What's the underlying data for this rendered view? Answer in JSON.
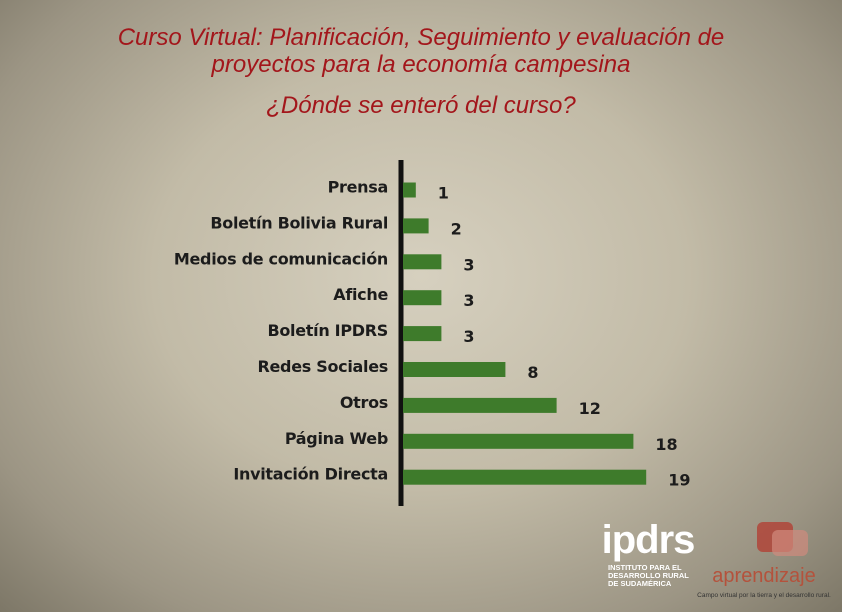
{
  "chart_data": {
    "type": "bar",
    "orientation": "horizontal",
    "title": "Curso Virtual: Planificación, Seguimiento y evaluación de proyectos para la economía campesina",
    "subtitle": "¿Dónde se enteró del curso?",
    "categories": [
      "Prensa",
      "Boletín Bolivia Rural",
      "Medios de comunicación",
      "Afiche",
      "Boletín IPDRS",
      "Redes Sociales",
      "Otros",
      "Página Web",
      "Invitación Directa"
    ],
    "values": [
      1,
      2,
      3,
      3,
      3,
      8,
      12,
      18,
      19
    ],
    "color": "#3e7b2b"
  },
  "logos": {
    "ipdrs": "ipdrs",
    "ipdrs_caption": "INSTITUTO PARA EL DESARROLLO RURAL DE SUDAMÉRICA",
    "aprendizaje": "aprendizaje",
    "aprendizaje_caption": "Campo virtual por la tierra y el desarrollo rural."
  }
}
